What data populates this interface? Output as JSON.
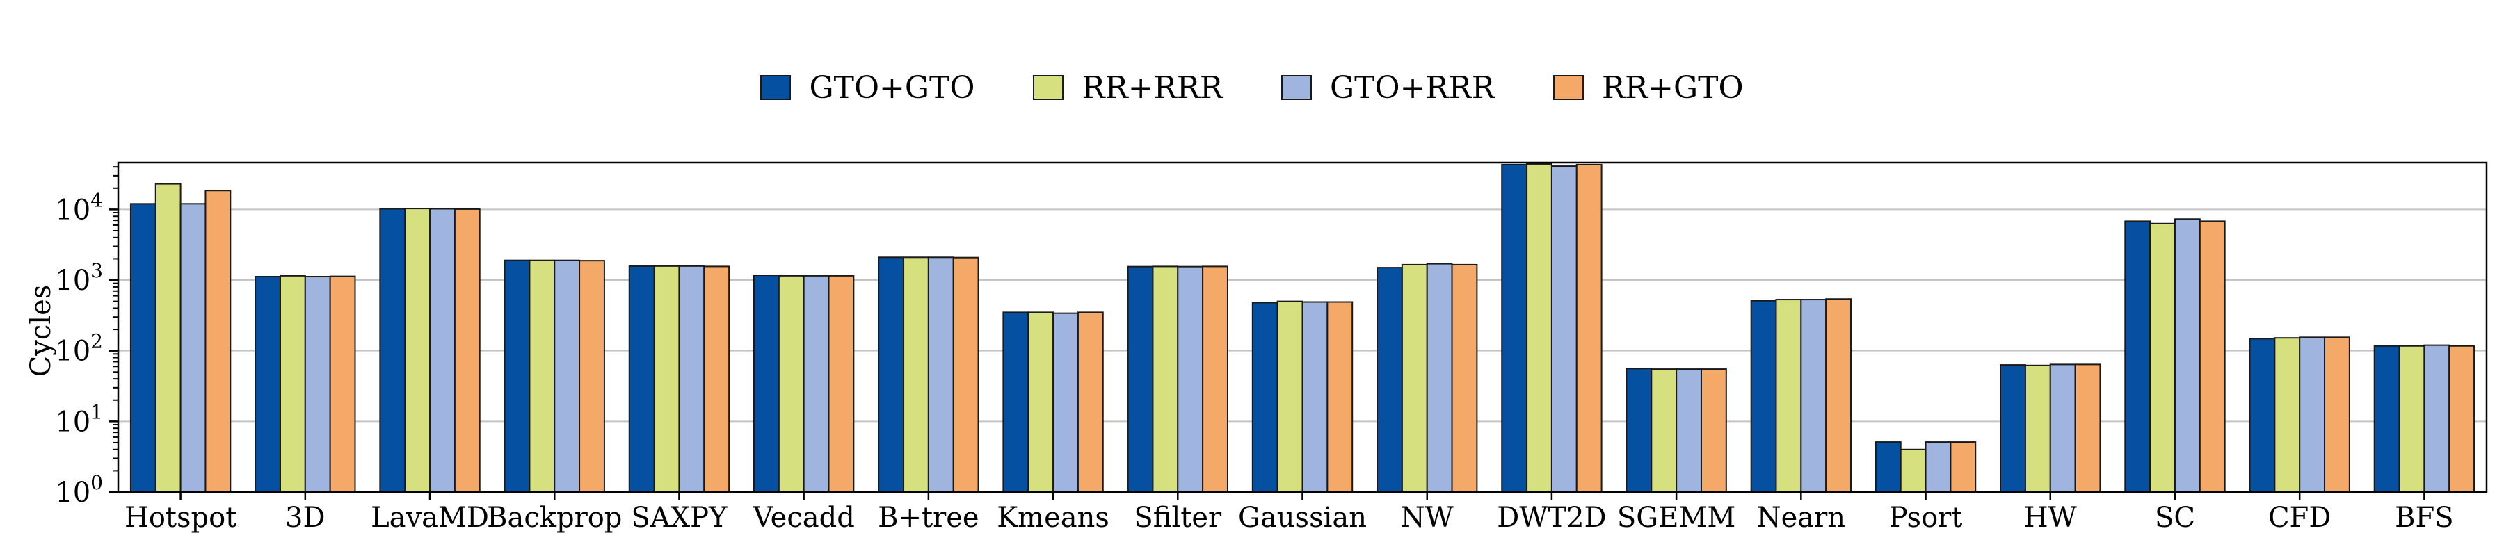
{
  "chart_data": {
    "type": "bar",
    "ylabel": "Cycles",
    "yscale": "log",
    "ylim": [
      1,
      46000
    ],
    "yticks": [
      1,
      10,
      100,
      1000,
      10000
    ],
    "ytick_labels": [
      {
        "base": "10",
        "exp": "0"
      },
      {
        "base": "10",
        "exp": "1"
      },
      {
        "base": "10",
        "exp": "2"
      },
      {
        "base": "10",
        "exp": "3"
      },
      {
        "base": "10",
        "exp": "4"
      }
    ],
    "grid": "horizontal at major ticks",
    "legend_position": "top-center",
    "categories": [
      "Hotspot",
      "3D",
      "LavaMD",
      "Backprop",
      "SAXPY",
      "Vecadd",
      "B+tree",
      "Kmeans",
      "Sfilter",
      "Gaussian",
      "NW",
      "DWT2D",
      "SGEMM",
      "Nearn",
      "Psort",
      "HW",
      "SC",
      "CFD",
      "BFS"
    ],
    "series": [
      {
        "name": "GTO+GTO",
        "color": "#0550a0",
        "values": [
          12000,
          1120,
          10200,
          1900,
          1580,
          1170,
          2100,
          350,
          1550,
          480,
          1500,
          43000,
          56,
          510,
          5.1,
          63,
          6800,
          148,
          117
        ]
      },
      {
        "name": "RR+RRR",
        "color": "#d6e07e",
        "values": [
          23000,
          1150,
          10300,
          1900,
          1580,
          1150,
          2100,
          350,
          1560,
          500,
          1650,
          44000,
          55,
          530,
          4.0,
          62,
          6300,
          152,
          117
        ]
      },
      {
        "name": "GTO+RRR",
        "color": "#9fb5e0",
        "values": [
          12000,
          1120,
          10200,
          1900,
          1580,
          1150,
          2100,
          340,
          1550,
          490,
          1700,
          41000,
          55,
          530,
          5.1,
          64,
          7300,
          155,
          120
        ]
      },
      {
        "name": "RR+GTO",
        "color": "#f5a968",
        "values": [
          18500,
          1130,
          10100,
          1880,
          1560,
          1150,
          2080,
          350,
          1560,
          490,
          1650,
          43000,
          55,
          540,
          5.1,
          64,
          6800,
          155,
          117
        ]
      }
    ]
  }
}
